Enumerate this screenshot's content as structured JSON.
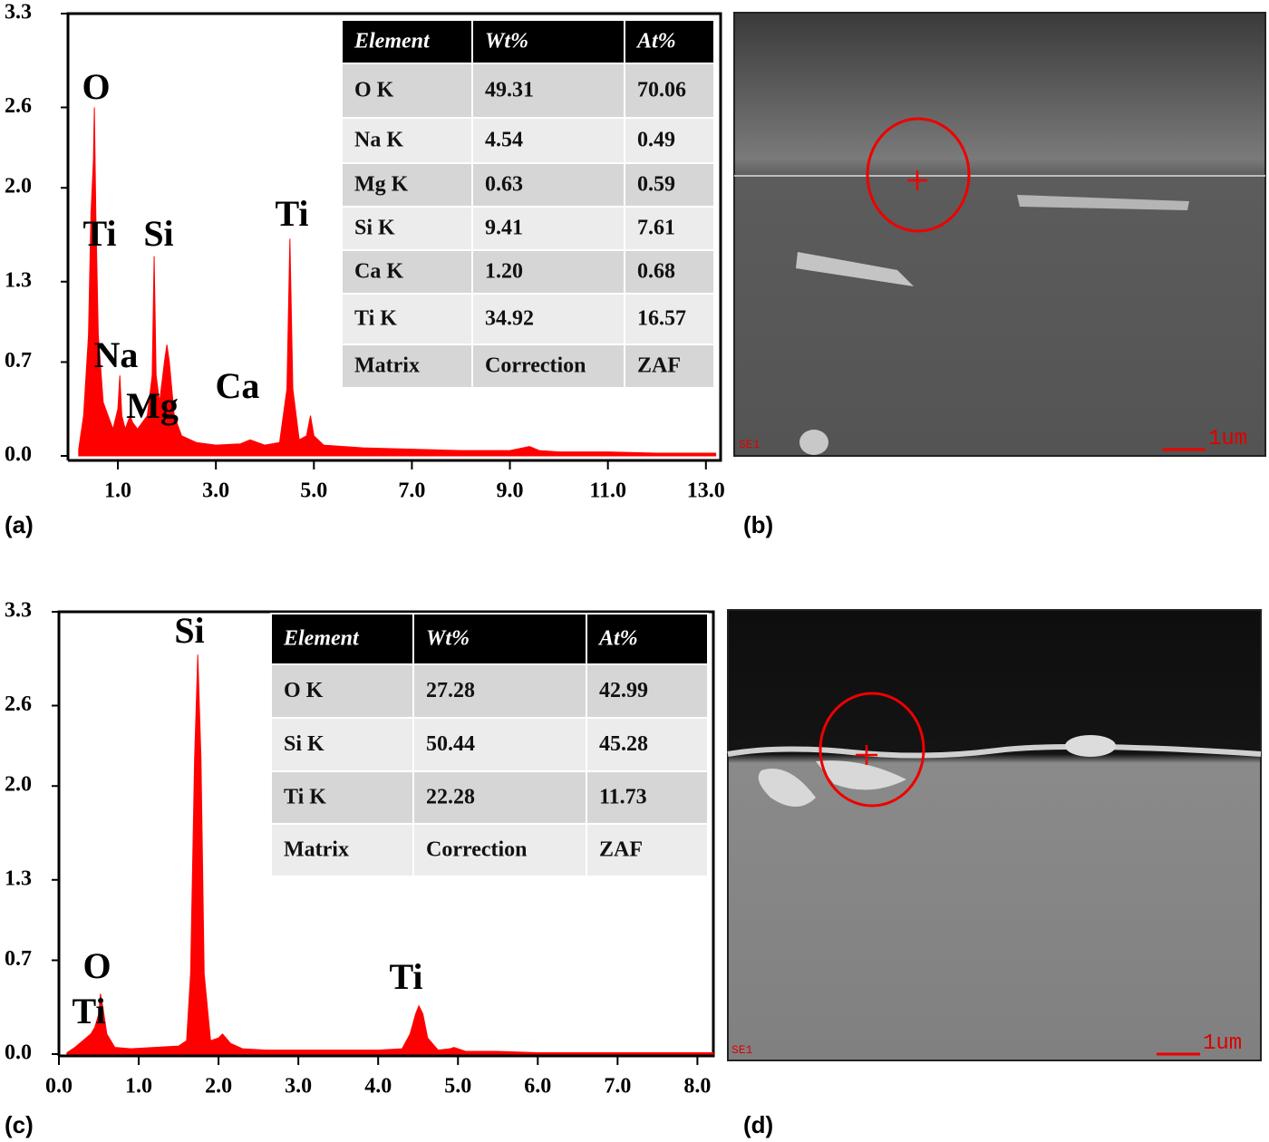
{
  "chart_data": [
    {
      "type": "area",
      "panel_label": "(a)",
      "color": "#ff0000",
      "x": [
        0.2,
        0.3,
        0.4,
        0.45,
        0.5,
        0.52,
        0.55,
        0.6,
        0.7,
        0.8,
        0.9,
        1.0,
        1.04,
        1.08,
        1.15,
        1.25,
        1.3,
        1.4,
        1.5,
        1.6,
        1.7,
        1.74,
        1.78,
        1.85,
        1.95,
        2.0,
        2.05,
        2.15,
        2.3,
        2.6,
        3.0,
        3.5,
        3.7,
        4.0,
        4.3,
        4.45,
        4.51,
        4.57,
        4.7,
        4.85,
        4.93,
        5.0,
        5.2,
        6,
        7,
        8,
        9,
        9.4,
        9.6,
        10,
        11,
        12,
        13,
        13.2
      ],
      "values": [
        0.05,
        0.3,
        0.9,
        1.8,
        2.2,
        2.6,
        1.8,
        0.9,
        0.4,
        0.3,
        0.2,
        0.35,
        0.6,
        0.3,
        0.2,
        0.3,
        0.25,
        0.2,
        0.25,
        0.3,
        0.6,
        1.49,
        0.6,
        0.4,
        0.7,
        0.83,
        0.7,
        0.3,
        0.15,
        0.1,
        0.08,
        0.09,
        0.12,
        0.08,
        0.1,
        0.5,
        1.62,
        0.5,
        0.12,
        0.15,
        0.3,
        0.15,
        0.08,
        0.06,
        0.05,
        0.04,
        0.04,
        0.07,
        0.04,
        0.03,
        0.03,
        0.02,
        0.02,
        0.02
      ],
      "xlim": [
        0,
        13.3
      ],
      "ylim": [
        0,
        3.3
      ],
      "xticks": [
        {
          "value": 1,
          "label": "1.0"
        },
        {
          "value": 3,
          "label": "3.0"
        },
        {
          "value": 5,
          "label": "5.0"
        },
        {
          "value": 7,
          "label": "7.0"
        },
        {
          "value": 9,
          "label": "9.0"
        },
        {
          "value": 11,
          "label": "11.0"
        },
        {
          "value": 13,
          "label": "13.0"
        }
      ],
      "yticks": [
        {
          "value": 0,
          "label": "0.0"
        },
        0.7,
        1.3,
        {
          "value": 2,
          "label": "2.0"
        },
        2.6,
        3.3
      ],
      "annotations": [
        "O",
        "Ti",
        "Si",
        "Ti",
        "Na",
        "Mg",
        "Ca"
      ],
      "table": {
        "header": [
          "Element",
          "Wt%",
          "At%"
        ],
        "rows": [
          [
            "O K",
            "49.31",
            "70.06"
          ],
          [
            "Na K",
            "4.54",
            "0.49"
          ],
          [
            "Mg K",
            "0.63",
            "0.59"
          ],
          [
            "Si K",
            "9.41",
            "7.61"
          ],
          [
            "Ca K",
            "1.20",
            "0.68"
          ],
          [
            "Ti K",
            "34.92",
            "16.57"
          ],
          [
            "Matrix",
            "Correction",
            "ZAF"
          ]
        ]
      }
    },
    {
      "type": "area",
      "panel_label": "(c)",
      "color": "#ff0000",
      "x": [
        0.1,
        0.2,
        0.3,
        0.4,
        0.45,
        0.5,
        0.52,
        0.55,
        0.6,
        0.7,
        0.9,
        1.2,
        1.5,
        1.6,
        1.65,
        1.7,
        1.74,
        1.78,
        1.82,
        1.9,
        2.0,
        2.05,
        2.15,
        2.3,
        2.6,
        3.0,
        3.5,
        4.0,
        4.3,
        4.4,
        4.47,
        4.51,
        4.56,
        4.62,
        4.75,
        4.9,
        4.95,
        5.1,
        5.5,
        6,
        7,
        8,
        8.2
      ],
      "values": [
        0.01,
        0.05,
        0.1,
        0.15,
        0.2,
        0.3,
        0.45,
        0.35,
        0.15,
        0.05,
        0.04,
        0.05,
        0.06,
        0.1,
        0.6,
        2.2,
        2.98,
        2.2,
        0.6,
        0.1,
        0.12,
        0.15,
        0.08,
        0.04,
        0.03,
        0.03,
        0.03,
        0.03,
        0.04,
        0.15,
        0.3,
        0.36,
        0.3,
        0.12,
        0.03,
        0.04,
        0.05,
        0.02,
        0.02,
        0.01,
        0.01,
        0.01,
        0.01
      ],
      "xlim": [
        0,
        8.2
      ],
      "ylim": [
        0,
        3.3
      ],
      "xticks": [
        {
          "value": 0,
          "label": "0.0"
        },
        {
          "value": 1,
          "label": "1.0"
        },
        {
          "value": 2,
          "label": "2.0"
        },
        {
          "value": 3,
          "label": "3.0"
        },
        {
          "value": 4,
          "label": "4.0"
        },
        {
          "value": 5,
          "label": "5.0"
        },
        {
          "value": 6,
          "label": "6.0"
        },
        {
          "value": 7,
          "label": "7.0"
        },
        {
          "value": 8,
          "label": "8.0"
        }
      ],
      "yticks": [
        {
          "value": 0,
          "label": "0.0"
        },
        0.7,
        1.3,
        {
          "value": 2,
          "label": "2.0"
        },
        2.6,
        3.3
      ],
      "annotations": [
        "Si",
        "O",
        "Ti",
        "Ti"
      ],
      "table": {
        "header": [
          "Element",
          "Wt%",
          "At%"
        ],
        "rows": [
          [
            "O K",
            "27.28",
            "42.99"
          ],
          [
            "Si K",
            "50.44",
            "45.28"
          ],
          [
            "Ti K",
            "22.28",
            "11.73"
          ],
          [
            "Matrix",
            "Correction",
            "ZAF"
          ]
        ]
      }
    }
  ],
  "sem_images": [
    {
      "panel_label": "(b)",
      "detector": "SE1",
      "scale_bar": "1um"
    },
    {
      "panel_label": "(d)",
      "detector": "SE1",
      "scale_bar": "1um"
    }
  ]
}
